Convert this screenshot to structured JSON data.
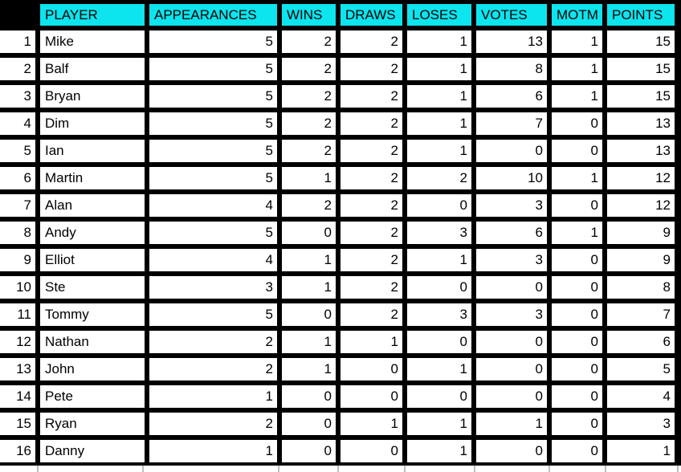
{
  "table": {
    "corner_label": "",
    "columns": [
      "PLAYER",
      "APPEARANCES",
      "WINS",
      "DRAWS",
      "LOSES",
      "VOTES",
      "MOTM",
      "POINTS"
    ],
    "rows": [
      {
        "rank": "1",
        "player": "Mike",
        "values": [
          "5",
          "2",
          "2",
          "1",
          "13",
          "1",
          "15"
        ]
      },
      {
        "rank": "2",
        "player": "Balf",
        "values": [
          "5",
          "2",
          "2",
          "1",
          "8",
          "1",
          "15"
        ]
      },
      {
        "rank": "3",
        "player": "Bryan",
        "values": [
          "5",
          "2",
          "2",
          "1",
          "6",
          "1",
          "15"
        ]
      },
      {
        "rank": "4",
        "player": "Dim",
        "values": [
          "5",
          "2",
          "2",
          "1",
          "7",
          "0",
          "13"
        ]
      },
      {
        "rank": "5",
        "player": "Ian",
        "values": [
          "5",
          "2",
          "2",
          "1",
          "0",
          "0",
          "13"
        ]
      },
      {
        "rank": "6",
        "player": "Martin",
        "values": [
          "5",
          "1",
          "2",
          "2",
          "10",
          "1",
          "12"
        ]
      },
      {
        "rank": "7",
        "player": "Alan",
        "values": [
          "4",
          "2",
          "2",
          "0",
          "3",
          "0",
          "12"
        ]
      },
      {
        "rank": "8",
        "player": "Andy",
        "values": [
          "5",
          "0",
          "2",
          "3",
          "6",
          "1",
          "9"
        ]
      },
      {
        "rank": "9",
        "player": "Elliot",
        "values": [
          "4",
          "1",
          "2",
          "1",
          "3",
          "0",
          "9"
        ]
      },
      {
        "rank": "10",
        "player": "Ste",
        "values": [
          "3",
          "1",
          "2",
          "0",
          "0",
          "0",
          "8"
        ]
      },
      {
        "rank": "11",
        "player": "Tommy",
        "values": [
          "5",
          "0",
          "2",
          "3",
          "3",
          "0",
          "7"
        ]
      },
      {
        "rank": "12",
        "player": "Nathan",
        "values": [
          "2",
          "1",
          "1",
          "0",
          "0",
          "0",
          "6"
        ]
      },
      {
        "rank": "13",
        "player": "John",
        "values": [
          "2",
          "1",
          "0",
          "1",
          "0",
          "0",
          "5"
        ]
      },
      {
        "rank": "14",
        "player": "Pete",
        "values": [
          "1",
          "0",
          "0",
          "0",
          "0",
          "0",
          "4"
        ]
      },
      {
        "rank": "15",
        "player": "Ryan",
        "values": [
          "2",
          "0",
          "1",
          "1",
          "1",
          "0",
          "3"
        ]
      },
      {
        "rank": "16",
        "player": "Danny",
        "values": [
          "1",
          "0",
          "0",
          "1",
          "0",
          "0",
          "1"
        ]
      }
    ]
  },
  "colors": {
    "header_bg": "#0ce4ee",
    "grid": "#000000",
    "cell_bg": "#ffffff",
    "text": "#000000"
  }
}
